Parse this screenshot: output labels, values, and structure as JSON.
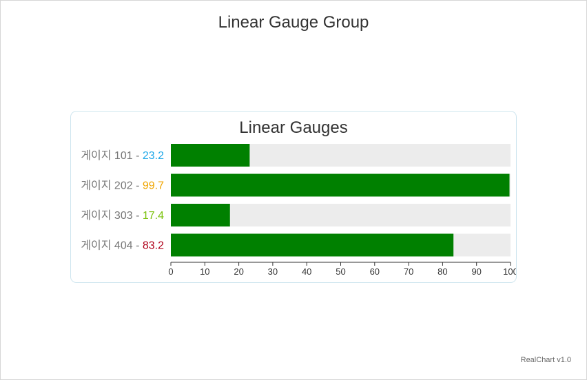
{
  "chart": {
    "title": "Linear Gauge Group",
    "credit": "RealChart v1.0"
  },
  "chart_data": {
    "type": "bar",
    "title": "Linear Gauges",
    "xlim": [
      0,
      100
    ],
    "ticks": [
      0,
      10,
      20,
      30,
      40,
      50,
      60,
      70,
      80,
      90,
      100
    ],
    "gauges": [
      {
        "name": "게이지 101",
        "value": 23.2,
        "value_color": "#1fa8e8"
      },
      {
        "name": "게이지 202",
        "value": 99.7,
        "value_color": "#f0a500"
      },
      {
        "name": "게이지 303",
        "value": 17.4,
        "value_color": "#7ac20c"
      },
      {
        "name": "게이지 404",
        "value": 83.2,
        "value_color": "#b0001a"
      }
    ],
    "colors": {
      "bar_fill": "#008000",
      "track": "#ececec",
      "axis": "#333333"
    }
  }
}
